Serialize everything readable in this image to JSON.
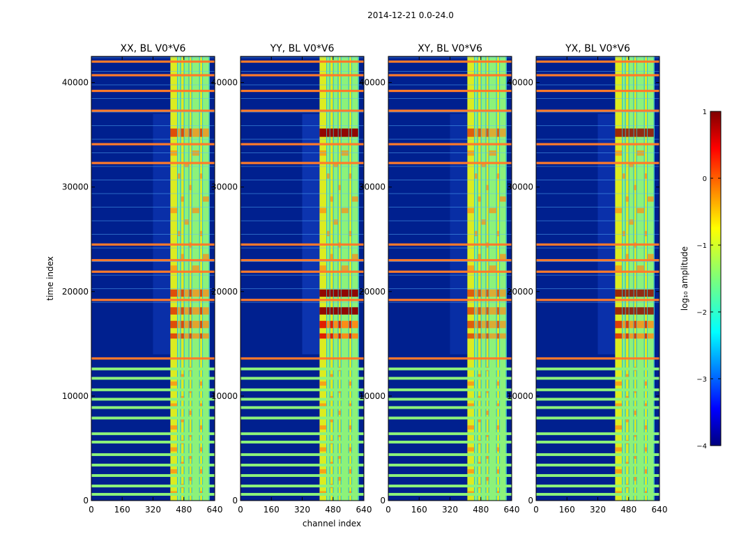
{
  "figure_title": "2014-12-21 0.0-24.0",
  "colors": {
    "background": "#00208f",
    "band_yellow": "#dcec20",
    "band_green": "#8cf27a",
    "band_cyan": "#3fe8e0",
    "hot_orange": "#ff8a14",
    "hot_red": "#e01a00",
    "hot_darkred": "#900000",
    "flag_orange": "#ff7a2a"
  },
  "chart_data": [
    {
      "type": "heatmap",
      "title": "XX, BL V0*V6",
      "xlabel": "",
      "ylabel": "time index",
      "xlim": [
        0,
        640
      ],
      "ylim": [
        0,
        42500
      ],
      "xticks": [
        "0",
        "160",
        "320",
        "480",
        "640"
      ],
      "yticks": [
        "0",
        "10000",
        "20000",
        "30000",
        "40000"
      ],
      "xtick_values": [
        0,
        160,
        320,
        480,
        640
      ],
      "ytick_values": [
        0,
        10000,
        20000,
        30000,
        40000
      ],
      "hot_scale": 1.0
    },
    {
      "type": "heatmap",
      "title": "YY, BL V0*V6",
      "xlabel": "channel index",
      "ylabel": "",
      "xlim": [
        0,
        640
      ],
      "ylim": [
        0,
        42500
      ],
      "xticks": [
        "0",
        "160",
        "320",
        "480",
        "640"
      ],
      "yticks": [
        "0",
        "10000",
        "20000",
        "30000",
        "40000"
      ],
      "xtick_values": [
        0,
        160,
        320,
        480,
        640
      ],
      "ytick_values": [
        0,
        10000,
        20000,
        30000,
        40000
      ],
      "hot_scale": 1.3
    },
    {
      "type": "heatmap",
      "title": "XY, BL V0*V6",
      "xlabel": "",
      "ylabel": "",
      "xlim": [
        0,
        640
      ],
      "ylim": [
        0,
        42500
      ],
      "xticks": [
        "0",
        "160",
        "320",
        "480",
        "640"
      ],
      "yticks": [
        "0",
        "10000",
        "20000",
        "30000",
        "40000"
      ],
      "xtick_values": [
        0,
        160,
        320,
        480,
        640
      ],
      "ytick_values": [
        0,
        10000,
        20000,
        30000,
        40000
      ],
      "hot_scale": 0.9
    },
    {
      "type": "heatmap",
      "title": "YX, BL V0*V6",
      "xlabel": "",
      "ylabel": "",
      "xlim": [
        0,
        640
      ],
      "ylim": [
        0,
        42500
      ],
      "xticks": [
        "0",
        "160",
        "320",
        "480",
        "640"
      ],
      "yticks": [
        "0",
        "10000",
        "20000",
        "30000",
        "40000"
      ],
      "xtick_values": [
        0,
        160,
        320,
        480,
        640
      ],
      "ytick_values": [
        0,
        10000,
        20000,
        30000,
        40000
      ],
      "hot_scale": 1.1
    }
  ],
  "colorbar": {
    "label": "log₁₀ amplitude",
    "range": [
      -4,
      1
    ],
    "ticks": [
      "1",
      "0",
      "−1",
      "−2",
      "−3",
      "−4"
    ],
    "tick_values": [
      1,
      0,
      -1,
      -2,
      -3,
      -4
    ]
  },
  "features": {
    "channel_band_range": [
      410,
      610
    ],
    "channel_stripes": [
      [
        410,
        445,
        "yellow"
      ],
      [
        448,
        462,
        "green"
      ],
      [
        465,
        480,
        "yellow"
      ],
      [
        483,
        505,
        "green"
      ],
      [
        508,
        520,
        "yellow"
      ],
      [
        523,
        560,
        "green"
      ],
      [
        563,
        575,
        "yellow"
      ],
      [
        578,
        610,
        "green"
      ]
    ],
    "band_start_time": 13500,
    "rfi_rows_orange": [
      42000,
      40700,
      39200,
      37300,
      34100,
      32300,
      24500,
      23000,
      21900,
      19200,
      13600
    ],
    "rfi_rows_green": [
      12600,
      11700,
      10600,
      9700,
      8900,
      7900,
      6400,
      5600,
      4400,
      3400,
      2400,
      1400,
      600
    ],
    "hot_rows": [
      [
        34800,
        35600
      ],
      [
        19500,
        20200
      ],
      [
        17800,
        18500
      ],
      [
        16500,
        17200
      ],
      [
        15500,
        16000
      ]
    ]
  }
}
